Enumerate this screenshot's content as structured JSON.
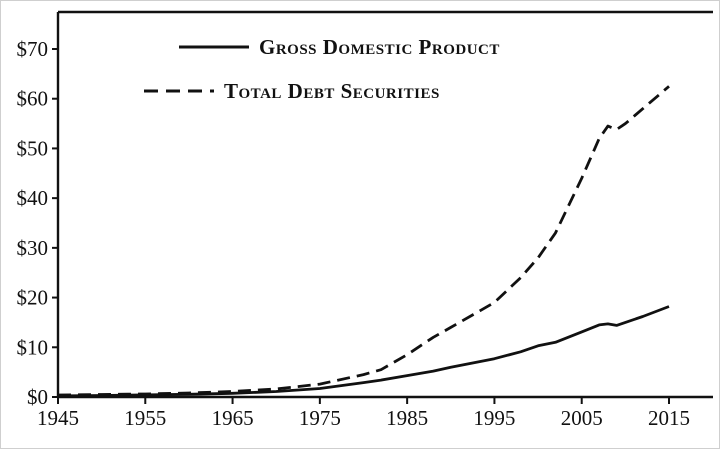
{
  "figure": {
    "background": "#ffffff",
    "line_color": "#111111"
  },
  "chart_data": {
    "type": "line",
    "title": "",
    "xlabel": "",
    "ylabel": "",
    "grid": false,
    "legend_position": "top-left-inside",
    "xlim": [
      1945,
      2015
    ],
    "ylim": [
      0,
      70
    ],
    "xticks": [
      1945,
      1955,
      1965,
      1975,
      1985,
      1995,
      2005,
      2015
    ],
    "yticks": [
      0,
      10,
      20,
      30,
      40,
      50,
      60,
      70
    ],
    "ytick_labels": [
      "$0",
      "$10",
      "$20",
      "$30",
      "$40",
      "$50",
      "$60",
      "$70"
    ],
    "x": [
      1945,
      1950,
      1955,
      1960,
      1965,
      1970,
      1975,
      1980,
      1982,
      1985,
      1988,
      1990,
      1995,
      1998,
      2000,
      2002,
      2005,
      2007,
      2008,
      2009,
      2010,
      2012,
      2015
    ],
    "series": [
      {
        "name": "Gross Domestic Product",
        "line_style": "solid",
        "color": "#111111",
        "values": [
          0.23,
          0.3,
          0.43,
          0.55,
          0.75,
          1.1,
          1.7,
          2.9,
          3.4,
          4.3,
          5.2,
          6.0,
          7.7,
          9.1,
          10.3,
          11.0,
          13.1,
          14.5,
          14.7,
          14.4,
          15.0,
          16.2,
          18.2
        ]
      },
      {
        "name": "Total Debt Securities",
        "line_style": "dashed",
        "color": "#111111",
        "values": [
          0.4,
          0.5,
          0.6,
          0.8,
          1.1,
          1.6,
          2.6,
          4.5,
          5.5,
          8.5,
          12.0,
          14.0,
          19.0,
          24.0,
          28.0,
          33.0,
          44.0,
          52.0,
          54.5,
          53.8,
          55.0,
          58.0,
          62.5
        ]
      }
    ]
  }
}
